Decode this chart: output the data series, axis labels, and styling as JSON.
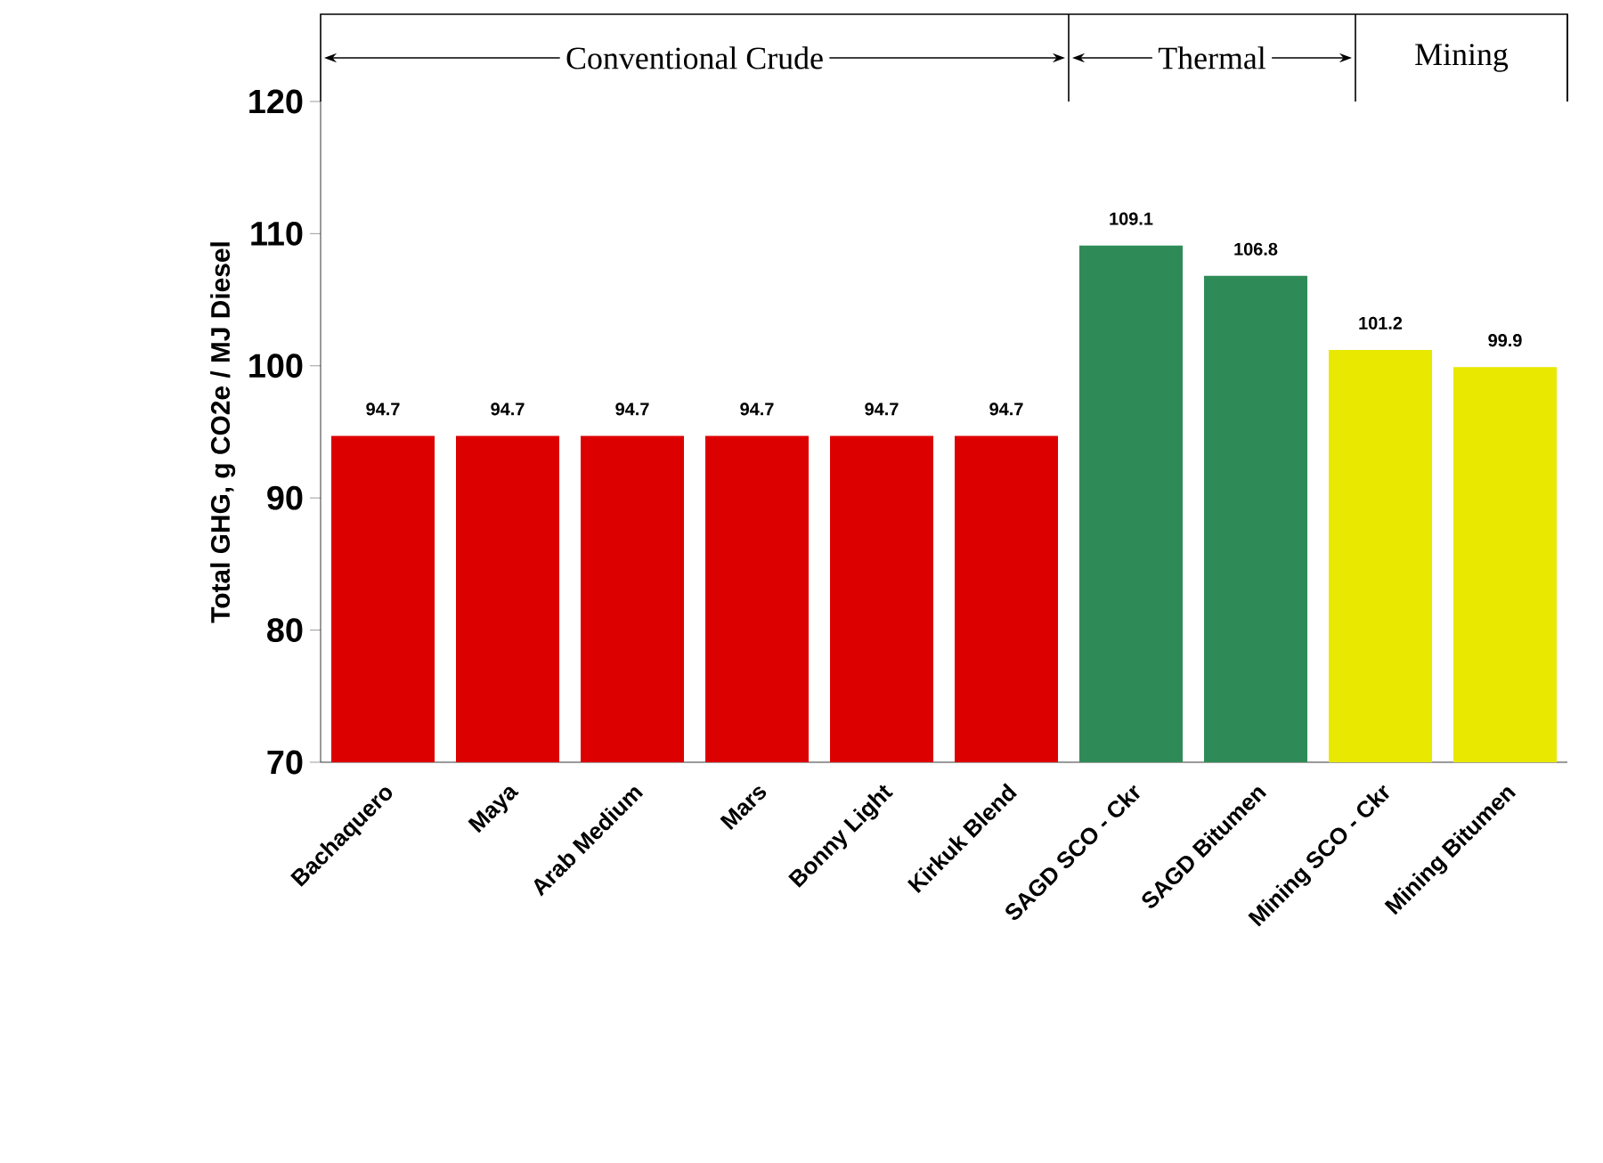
{
  "chart_data": {
    "type": "bar",
    "ylabel": "Total GHG, g CO2e / MJ Diesel",
    "categories": [
      "Bachaquero",
      "Maya",
      "Arab Medium",
      "Mars",
      "Bonny Light",
      "Kirkuk Blend",
      "SAGD SCO - Ckr",
      "SAGD Bitumen",
      "Mining SCO - Ckr",
      "Mining Bitumen"
    ],
    "values": [
      94.7,
      94.7,
      94.7,
      94.7,
      94.7,
      94.7,
      109.1,
      106.8,
      101.2,
      99.9
    ],
    "colors": [
      "#dd0000",
      "#dd0000",
      "#dd0000",
      "#dd0000",
      "#dd0000",
      "#dd0000",
      "#2e8b57",
      "#2e8b57",
      "#e8e800",
      "#e8e800"
    ],
    "ylim": [
      70,
      120
    ],
    "yticks": [
      70,
      80,
      90,
      100,
      110,
      120
    ],
    "data_labels": true,
    "annotations": [
      "Conventional Crude",
      "Thermal",
      "Mining"
    ]
  }
}
